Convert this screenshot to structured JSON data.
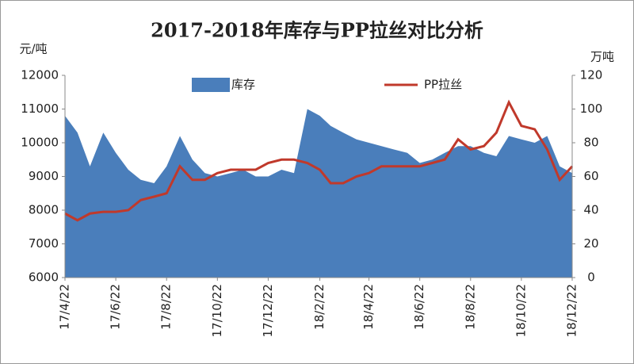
{
  "chart_data": {
    "type": "line",
    "title": "2017-2018年库存与PP拉丝对比分析",
    "y_label": "元/吨",
    "y2_label": "万吨",
    "x": [
      "17/4/22",
      "17/5/7",
      "17/5/22",
      "17/6/7",
      "17/6/22",
      "17/7/7",
      "17/7/22",
      "17/8/7",
      "17/8/22",
      "17/9/7",
      "17/9/22",
      "17/10/7",
      "17/10/22",
      "17/11/7",
      "17/11/22",
      "17/12/7",
      "17/12/22",
      "18/1/7",
      "18/1/22",
      "18/2/7",
      "18/2/22",
      "18/3/7",
      "18/3/22",
      "18/4/7",
      "18/4/22",
      "18/5/7",
      "18/5/22",
      "18/6/7",
      "18/6/22",
      "18/7/7",
      "18/7/22",
      "18/8/7",
      "18/8/22",
      "18/9/7",
      "18/9/22",
      "18/10/7",
      "18/10/22",
      "18/11/7",
      "18/11/22",
      "18/12/7",
      "18/12/22"
    ],
    "xlim": [
      "17/4/22",
      "18/12/22"
    ],
    "xticks": [
      "17/4/22",
      "17/6/22",
      "17/8/22",
      "17/10/22",
      "17/12/22",
      "18/2/22",
      "18/4/22",
      "18/6/22",
      "18/8/22",
      "18/10/22",
      "18/12/22"
    ],
    "ylim": [
      6000,
      12000
    ],
    "yticks": [
      6000,
      7000,
      8000,
      9000,
      10000,
      11000,
      12000
    ],
    "y2lim": [
      0,
      120
    ],
    "y2ticks": [
      0,
      20,
      40,
      60,
      80,
      100,
      120
    ],
    "series": [
      {
        "name": "库存",
        "color": "#4a7ebb",
        "kind": "area",
        "axis": "y2",
        "values": [
          96,
          86,
          66,
          86,
          74,
          64,
          58,
          56,
          66,
          84,
          70,
          62,
          60,
          62,
          64,
          60,
          60,
          64,
          62,
          100,
          96,
          90,
          86,
          82,
          80,
          78,
          76,
          74,
          68,
          70,
          74,
          78,
          78,
          74,
          72,
          84,
          82,
          80,
          84,
          66,
          62
        ]
      },
      {
        "name": "PP拉丝",
        "color": "#c0392b",
        "kind": "line",
        "values": [
          7900,
          7700,
          7900,
          7950,
          7950,
          8000,
          8300,
          8400,
          8500,
          9300,
          8900,
          8900,
          9100,
          9200,
          9200,
          9200,
          9400,
          9500,
          9500,
          9400,
          9200,
          8800,
          8800,
          9000,
          9100,
          9300,
          9300,
          9300,
          9300,
          9400,
          9500,
          10100,
          9800,
          9900,
          10300,
          11200,
          10500,
          10400,
          9800,
          8900,
          9300
        ]
      }
    ]
  }
}
